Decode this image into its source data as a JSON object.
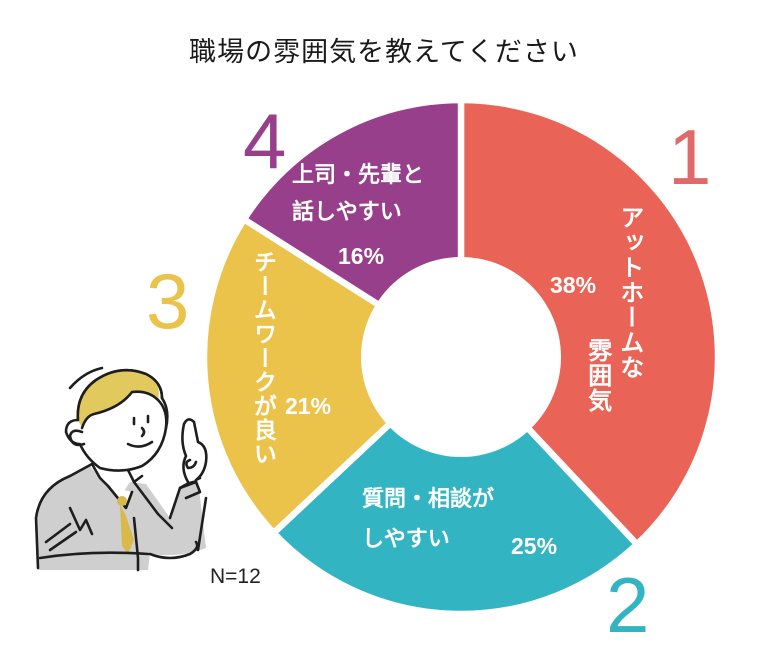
{
  "title": "職場の雰囲気を教えてください",
  "sample_size": "N=12",
  "slices": [
    {
      "rank": "1",
      "label_lines": [
        "アットホームな",
        "雰囲気"
      ],
      "percent": "38%",
      "value": 38,
      "color": "#E96456",
      "rank_color": "#E0696A"
    },
    {
      "rank": "2",
      "label_lines": [
        "質問・相談が",
        "しやすい"
      ],
      "percent": "25%",
      "value": 25,
      "color": "#33B4C2",
      "rank_color": "#33B4C2"
    },
    {
      "rank": "3",
      "label_lines": [
        "チームワークが良い"
      ],
      "percent": "21%",
      "value": 21,
      "color": "#EBC24A",
      "rank_color": "#EBC24A"
    },
    {
      "rank": "4",
      "label_lines": [
        "上司・先輩と",
        "話しやすい"
      ],
      "percent": "16%",
      "value": 16,
      "color": "#973F8B",
      "rank_color": "#973F8B"
    }
  ],
  "chart_data": {
    "type": "pie",
    "title": "職場の雰囲気を教えてください",
    "categories": [
      "アットホームな雰囲気",
      "質問・相談がしやすい",
      "チームワークが良い",
      "上司・先輩と話しやすい"
    ],
    "values": [
      38,
      25,
      21,
      16
    ],
    "unit": "%",
    "ranks": [
      1,
      2,
      3,
      4
    ],
    "colors": [
      "#E96456",
      "#33B4C2",
      "#EBC24A",
      "#973F8B"
    ],
    "donut": true,
    "start_angle": "12 o'clock, clockwise",
    "annotation": "N=12",
    "legend": "none (labels inside slices, rank numbers outside)"
  }
}
